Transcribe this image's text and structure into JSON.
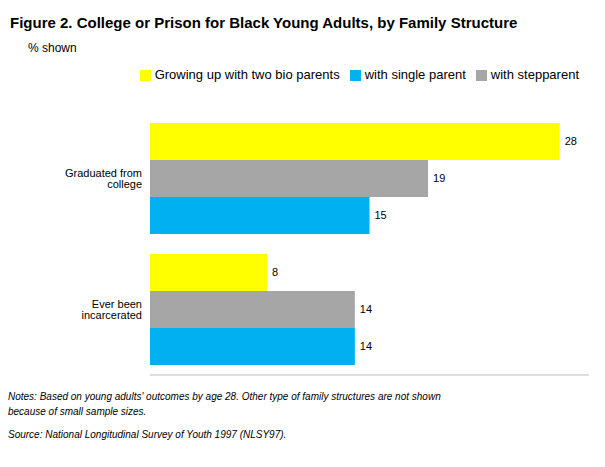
{
  "chart_data": {
    "type": "bar",
    "title": "Figure 2. College or Prison for Black Young Adults, by Family Structure",
    "subtitle": "% shown",
    "orientation": "horizontal",
    "categories": [
      "Graduated from college",
      "Ever been incarcerated"
    ],
    "series": [
      {
        "name": "Growing up with two bio parents",
        "color": "#ffff00",
        "values": [
          28,
          8
        ]
      },
      {
        "name": "with stepparent",
        "color": "#a6a6a6",
        "values": [
          19,
          14
        ]
      },
      {
        "name": "with single parent",
        "color": "#00b0f0",
        "values": [
          15,
          14
        ]
      }
    ],
    "xlim": [
      0,
      30
    ],
    "data_labels": true,
    "tick_labels": "y",
    "grid": false,
    "legend": "top",
    "notes": "Notes: Based on young adults' outcomes by age 28. Other type of family structures are not shown because of small sample sizes.",
    "source": "Source: National Longitudinal Survey of Youth 1997 (NLSY97)."
  }
}
